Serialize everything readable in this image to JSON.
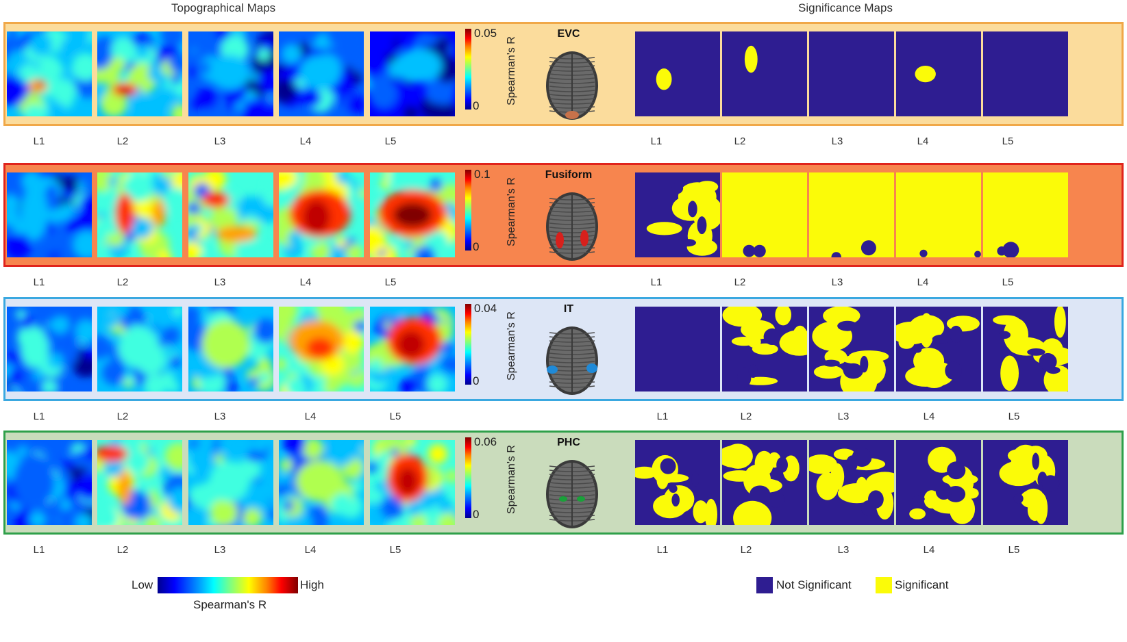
{
  "headers": {
    "topographical": "Topographical Maps",
    "significance": "Significance Maps"
  },
  "layer_labels": [
    "L1",
    "L2",
    "L3",
    "L4",
    "L5"
  ],
  "colorbar_label": "Spearman's R",
  "regions": [
    {
      "name": "EVC",
      "max": "0.05",
      "min": "0",
      "band_color": "#fbdc9c",
      "border_color": "#f0a848",
      "brain_spot": "#c8724a",
      "significance": [
        "small",
        "small",
        "none",
        "small",
        "none"
      ]
    },
    {
      "name": "Fusiform",
      "max": "0.1",
      "min": "0",
      "band_color": "#f7854e",
      "border_color": "#e0241c",
      "brain_spot": "#d8201c",
      "significance": [
        "partial",
        "full",
        "full",
        "full",
        "full"
      ]
    },
    {
      "name": "IT",
      "max": "0.04",
      "min": "0",
      "band_color": "#dde6f6",
      "border_color": "#3aa8e0",
      "brain_spot": "#1f8ad8",
      "significance": [
        "none",
        "partial",
        "partial",
        "partial",
        "partial"
      ]
    },
    {
      "name": "PHC",
      "max": "0.06",
      "min": "0",
      "band_color": "#cadcbc",
      "border_color": "#2fa04a",
      "brain_spot": "#1aa03a",
      "significance": [
        "partial",
        "partial",
        "partial",
        "partial",
        "partial"
      ]
    }
  ],
  "legend": {
    "low": "Low",
    "high": "High",
    "scale_label": "Spearman's R",
    "not_significant": "Not Significant",
    "significant": "Significant",
    "not_significant_color": "#2e1d91",
    "significant_color": "#fbfb08"
  }
}
